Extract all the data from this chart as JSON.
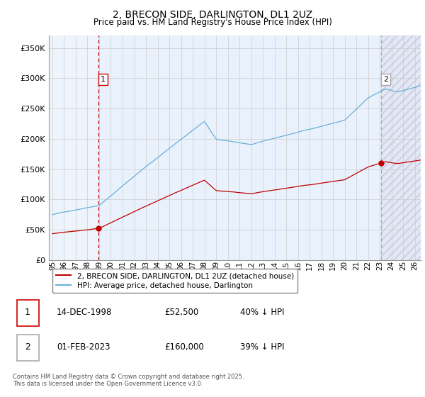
{
  "title": "2, BRECON SIDE, DARLINGTON, DL1 2UZ",
  "subtitle": "Price paid vs. HM Land Registry's House Price Index (HPI)",
  "ylim": [
    0,
    370000
  ],
  "yticks": [
    0,
    50000,
    100000,
    150000,
    200000,
    250000,
    300000,
    350000
  ],
  "ytick_labels": [
    "£0",
    "£50K",
    "£100K",
    "£150K",
    "£200K",
    "£250K",
    "£300K",
    "£350K"
  ],
  "hpi_color": "#6aaed6",
  "price_color": "#c00000",
  "t1": 1998.917,
  "t2": 2023.083,
  "marker1_price": 52500,
  "marker2_price": 160000,
  "legend_entries": [
    "2, BRECON SIDE, DARLINGTON, DL1 2UZ (detached house)",
    "HPI: Average price, detached house, Darlington"
  ],
  "table_rows": [
    [
      "1",
      "14-DEC-1998",
      "£52,500",
      "40% ↓ HPI"
    ],
    [
      "2",
      "01-FEB-2023",
      "£160,000",
      "39% ↓ HPI"
    ]
  ],
  "footnote": "Contains HM Land Registry data © Crown copyright and database right 2025.\nThis data is licensed under the Open Government Licence v3.0.",
  "background_color": "#ffffff",
  "grid_color": "#cccccc",
  "vline_color": "#cc0000",
  "shade_color": "#ddeeff",
  "xstart": 1995.0,
  "xend": 2026.5
}
